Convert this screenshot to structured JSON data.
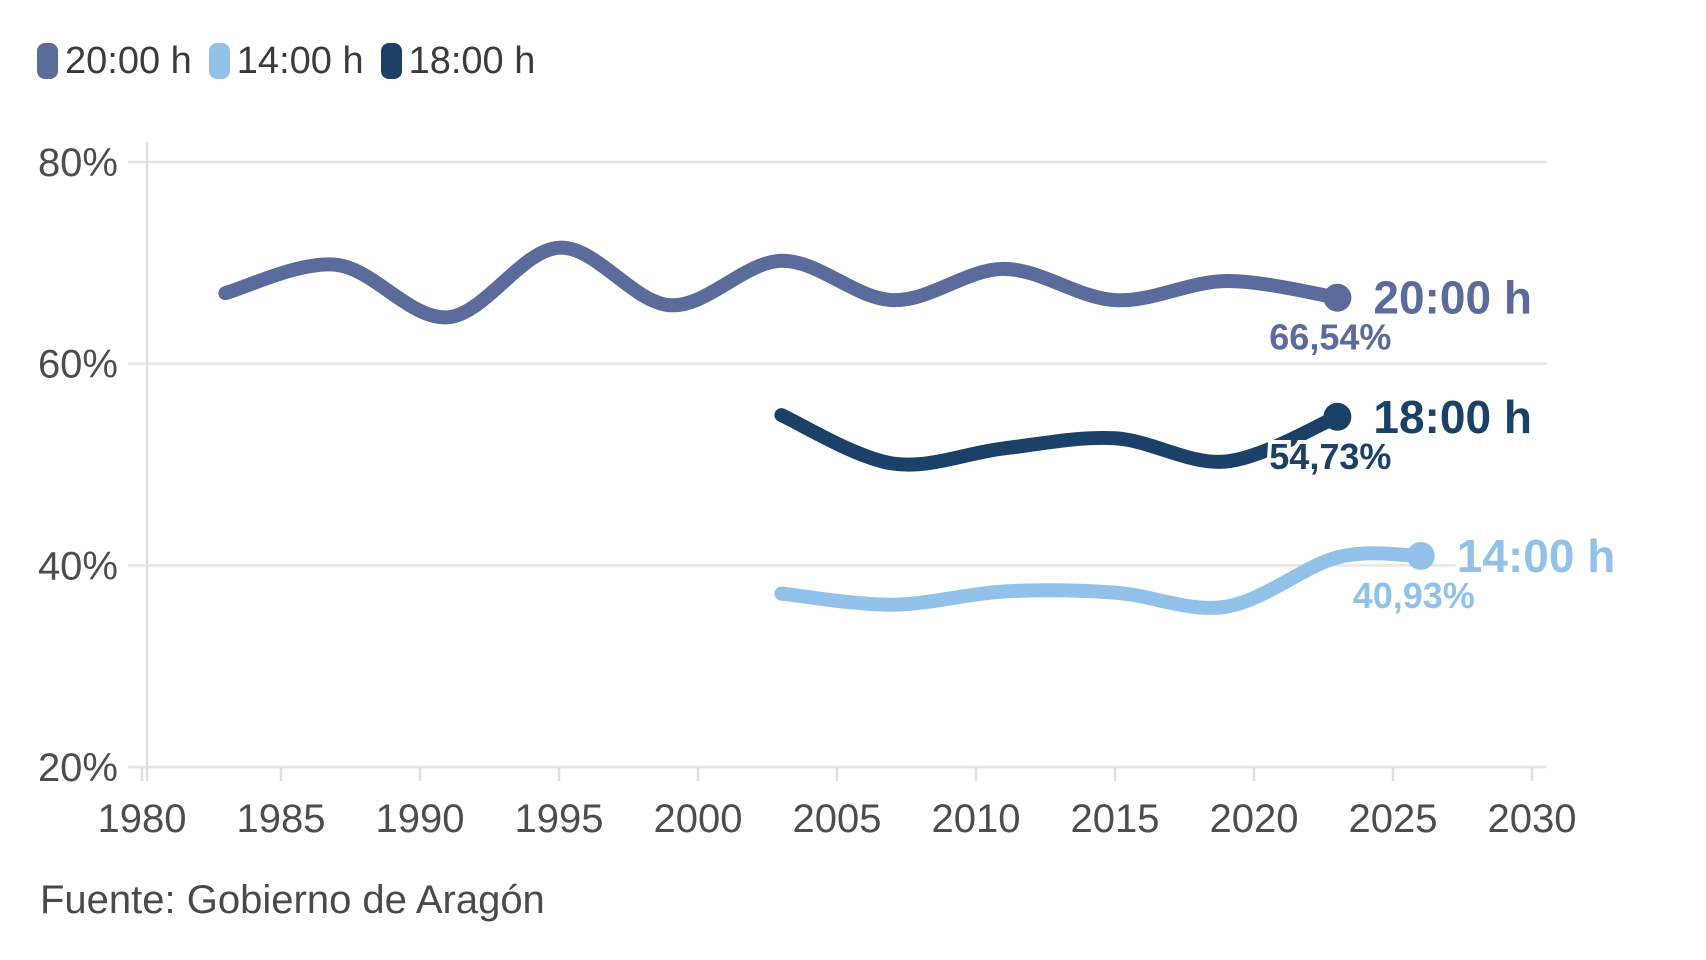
{
  "legend": {
    "items": [
      {
        "label": "20:00 h",
        "slug": "20-00-h",
        "color": "#5a6b9c"
      },
      {
        "label": "14:00 h",
        "slug": "14-00-h",
        "color": "#92c1e9"
      },
      {
        "label": "18:00 h",
        "slug": "18-00-h",
        "color": "#1b4168"
      }
    ]
  },
  "source": {
    "text": "Fuente: Gobierno de Aragón"
  },
  "chart_data": {
    "type": "line",
    "title": "",
    "xlabel": "",
    "ylabel": "",
    "grid": "horizontal",
    "legend_position": "top-left",
    "xlim": [
      1979.5,
      2030.6
    ],
    "ylim": [
      20,
      80
    ],
    "x_ticks": [
      1980,
      1985,
      1990,
      1995,
      2000,
      2005,
      2010,
      2015,
      2020,
      2025,
      2030
    ],
    "y_ticks": [
      {
        "value": 80,
        "label": "80%"
      },
      {
        "value": 60,
        "label": "60%"
      },
      {
        "value": 40,
        "label": "40%"
      },
      {
        "value": 20,
        "label": "20%"
      }
    ],
    "series": [
      {
        "name": "20:00 h",
        "slug": "20-00-h",
        "color": "#5a6b9c",
        "end_label": "20:00 h",
        "end_value_label": "66,54%",
        "points": [
          {
            "x": 1983,
            "y": 67.0
          },
          {
            "x": 1987,
            "y": 69.8
          },
          {
            "x": 1991,
            "y": 64.6
          },
          {
            "x": 1995,
            "y": 71.5
          },
          {
            "x": 1999,
            "y": 65.8
          },
          {
            "x": 2003,
            "y": 70.2
          },
          {
            "x": 2007,
            "y": 66.3
          },
          {
            "x": 2011,
            "y": 69.4
          },
          {
            "x": 2015,
            "y": 66.3
          },
          {
            "x": 2019,
            "y": 68.2
          },
          {
            "x": 2023,
            "y": 66.54
          }
        ]
      },
      {
        "name": "14:00 h",
        "slug": "14-00-h",
        "color": "#92c1e9",
        "end_label": "14:00 h",
        "end_value_label": "40,93%",
        "points": [
          {
            "x": 2003,
            "y": 37.2
          },
          {
            "x": 2007,
            "y": 36.1
          },
          {
            "x": 2011,
            "y": 37.4
          },
          {
            "x": 2015,
            "y": 37.3
          },
          {
            "x": 2019,
            "y": 35.9
          },
          {
            "x": 2023,
            "y": 40.8
          },
          {
            "x": 2026,
            "y": 40.93
          }
        ]
      },
      {
        "name": "18:00 h",
        "slug": "18-00-h",
        "color": "#1b4168",
        "end_label": "18:00 h",
        "end_value_label": "54,73%",
        "points": [
          {
            "x": 2003,
            "y": 54.9
          },
          {
            "x": 2007,
            "y": 50.1
          },
          {
            "x": 2011,
            "y": 51.6
          },
          {
            "x": 2015,
            "y": 52.6
          },
          {
            "x": 2019,
            "y": 50.3
          },
          {
            "x": 2023,
            "y": 54.73
          }
        ]
      }
    ]
  }
}
